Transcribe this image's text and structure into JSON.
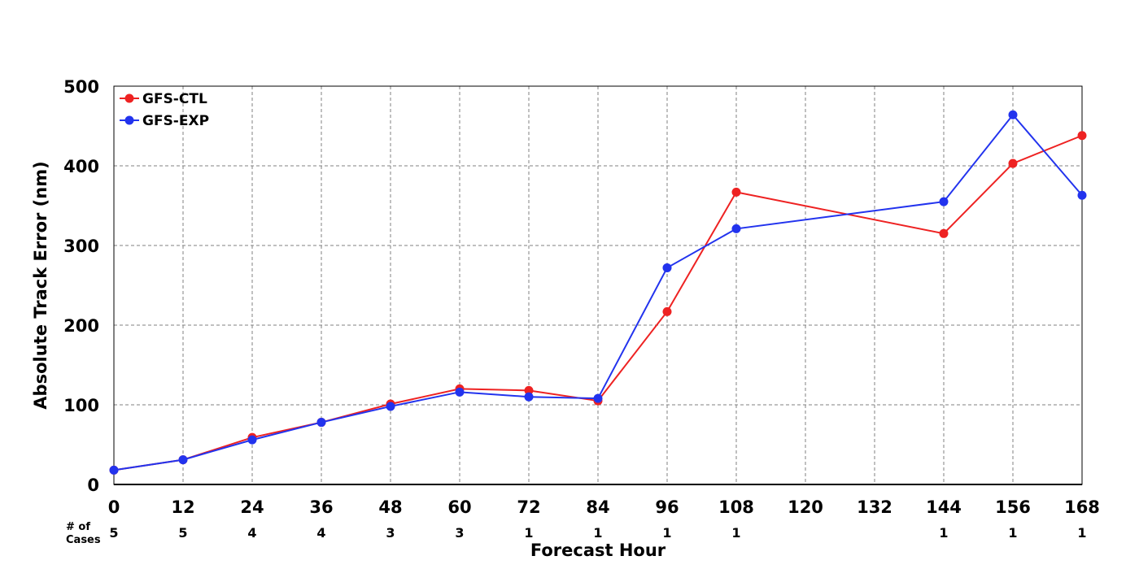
{
  "chart_data": {
    "type": "line",
    "xlabel": "Forecast Hour",
    "ylabel": "Absolute Track Error (nm)",
    "xlim": [
      0,
      168
    ],
    "ylim": [
      0,
      500
    ],
    "x_ticks": [
      0,
      12,
      24,
      36,
      48,
      60,
      72,
      84,
      96,
      108,
      120,
      132,
      144,
      156,
      168
    ],
    "y_ticks": [
      0,
      100,
      200,
      300,
      400,
      500
    ],
    "grid": true,
    "legend_position": "top-left",
    "cases_header_line1": "# of",
    "cases_header_line2": "Cases",
    "cases": [
      {
        "x": 0,
        "n": "5"
      },
      {
        "x": 12,
        "n": "5"
      },
      {
        "x": 24,
        "n": "4"
      },
      {
        "x": 36,
        "n": "4"
      },
      {
        "x": 48,
        "n": "3"
      },
      {
        "x": 60,
        "n": "3"
      },
      {
        "x": 72,
        "n": "1"
      },
      {
        "x": 84,
        "n": "1"
      },
      {
        "x": 96,
        "n": "1"
      },
      {
        "x": 108,
        "n": "1"
      },
      {
        "x": 144,
        "n": "1"
      },
      {
        "x": 156,
        "n": "1"
      },
      {
        "x": 168,
        "n": "1"
      }
    ],
    "series": [
      {
        "name": "GFS-CTL",
        "color": "#ee2222",
        "points": [
          [
            0,
            18
          ],
          [
            12,
            31
          ],
          [
            24,
            59
          ],
          [
            36,
            78
          ],
          [
            48,
            101
          ],
          [
            60,
            120
          ],
          [
            72,
            118
          ],
          [
            84,
            105
          ],
          [
            96,
            217
          ],
          [
            108,
            367
          ],
          [
            144,
            315
          ],
          [
            156,
            403
          ],
          [
            168,
            438
          ]
        ]
      },
      {
        "name": "GFS-EXP",
        "color": "#2233ee",
        "points": [
          [
            0,
            18
          ],
          [
            12,
            31
          ],
          [
            24,
            56
          ],
          [
            36,
            78
          ],
          [
            48,
            98
          ],
          [
            60,
            116
          ],
          [
            72,
            110
          ],
          [
            84,
            108
          ],
          [
            96,
            272
          ],
          [
            108,
            321
          ],
          [
            144,
            355
          ],
          [
            156,
            464
          ],
          [
            168,
            363
          ]
        ]
      }
    ]
  }
}
